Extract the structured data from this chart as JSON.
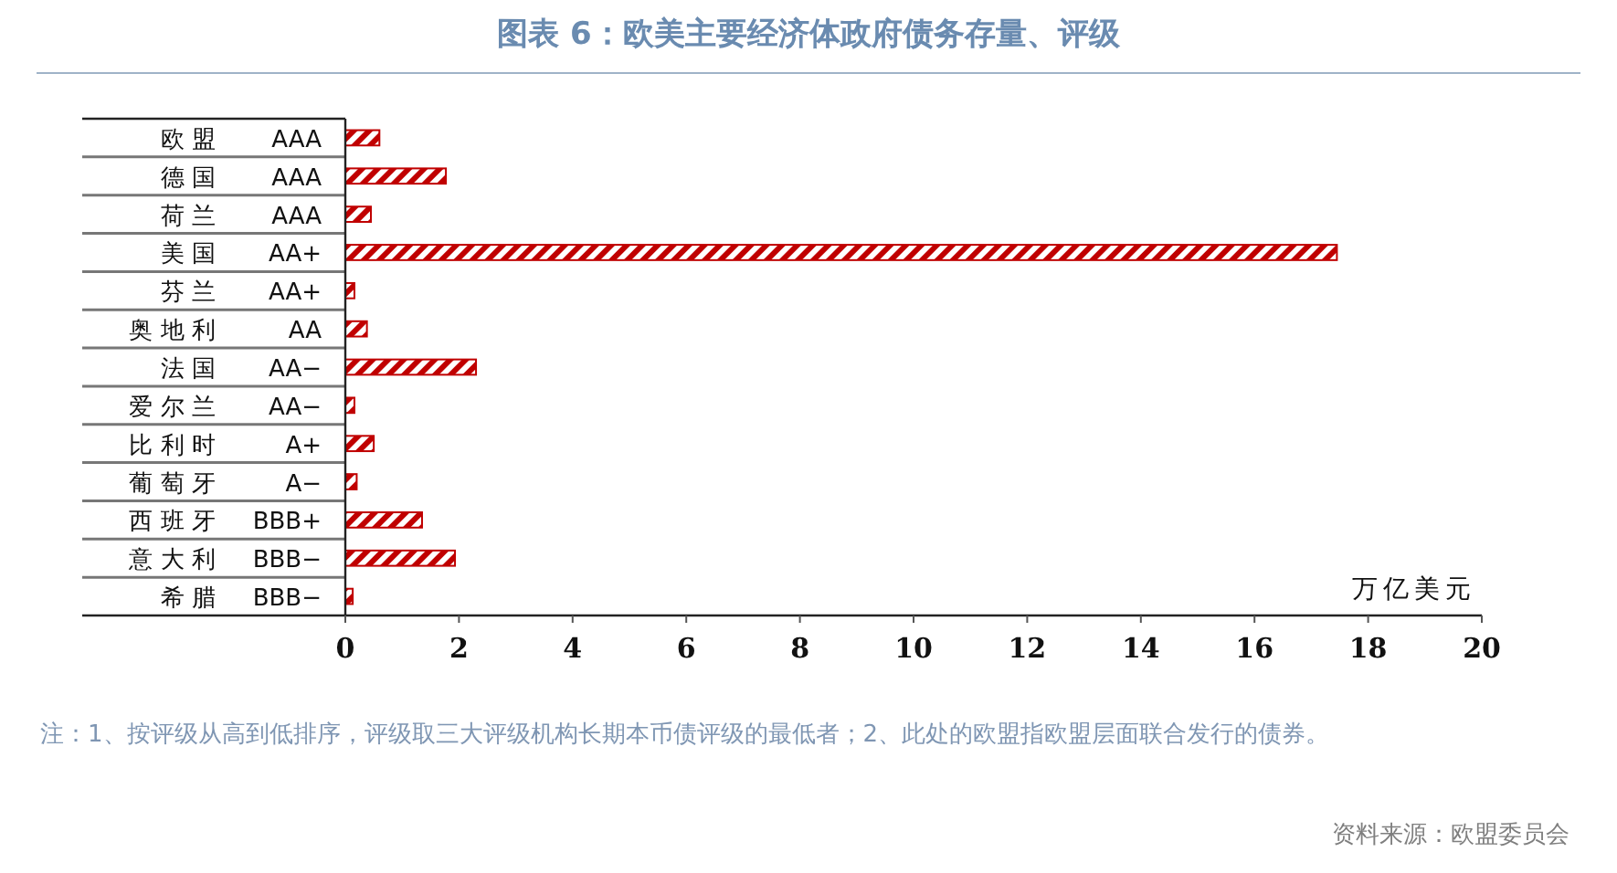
{
  "chart_data": {
    "type": "bar",
    "orientation": "horizontal",
    "title": "图表 6：欧美主要经济体政府债务存量、评级",
    "categories": [
      "欧盟",
      "德国",
      "荷兰",
      "美国",
      "芬兰",
      "奥地利",
      "法国",
      "爱尔兰",
      "比利时",
      "葡萄牙",
      "西班牙",
      "意大利",
      "希腊"
    ],
    "y2_categories": [
      "AAA",
      "AAA",
      "AAA",
      "AA+",
      "AA+",
      "AA",
      "AA−",
      "AA−",
      "A+",
      "A−",
      "BBB+",
      "BBB−",
      "BBB−"
    ],
    "values": [
      0.6,
      1.77,
      0.45,
      17.45,
      0.16,
      0.38,
      2.3,
      0.16,
      0.5,
      0.2,
      1.35,
      1.93,
      0.13
    ],
    "color": "#c00000",
    "xlim": [
      0,
      20
    ],
    "xticks": [
      0,
      2,
      4,
      6,
      8,
      10,
      12,
      14,
      16,
      18,
      20
    ],
    "xlabel": "万亿美元",
    "grid": false,
    "annotations": [
      "注：1、按评级从高到低排序，评级取三大评级机构长期本币债评级的最低者；2、此处的欧盟指欧盟层面联合发行的债券。",
      "资料来源：欧盟委员会"
    ]
  }
}
